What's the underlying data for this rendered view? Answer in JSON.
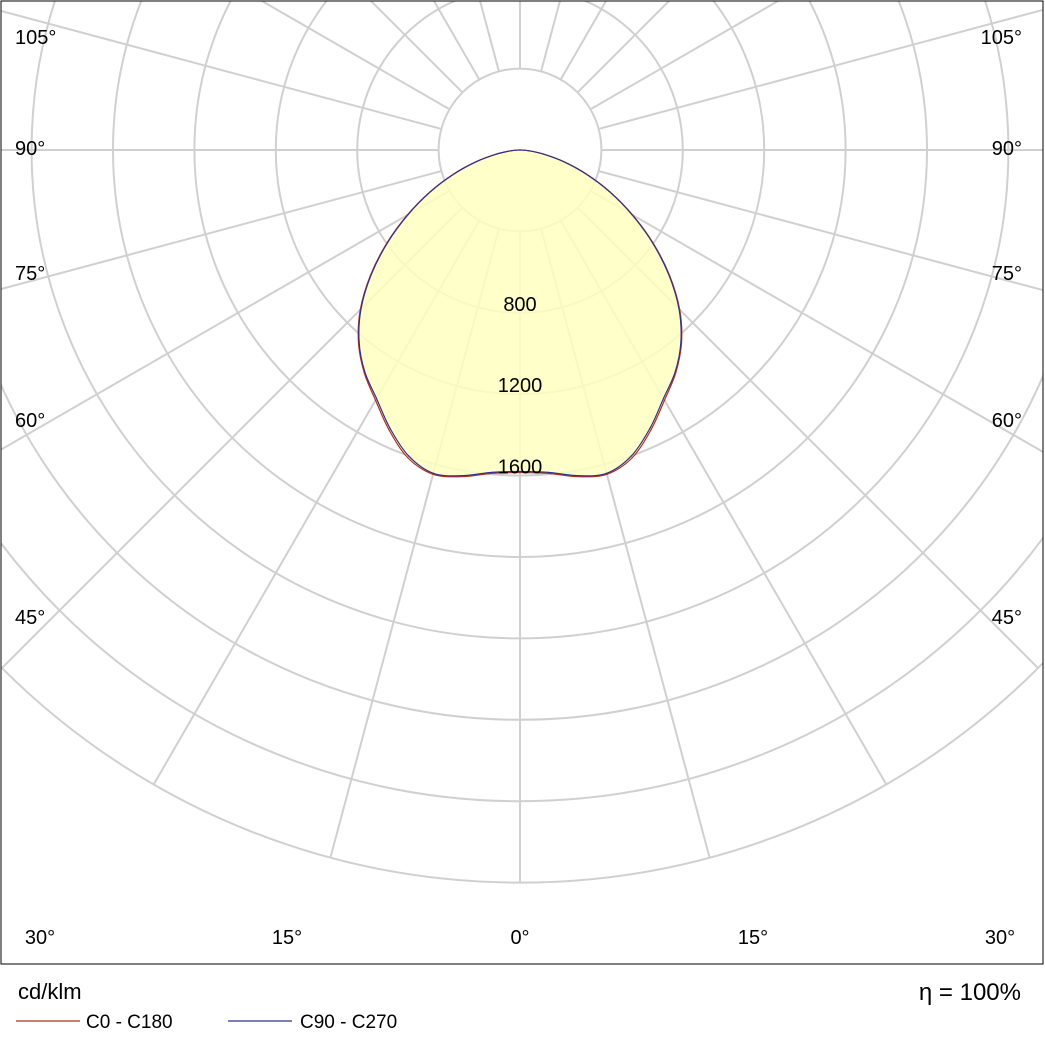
{
  "chart_data": {
    "type": "polar",
    "unit": "cd/klm",
    "efficiency_label": "η = 100%",
    "angle_unit": "degrees",
    "radial_ticks": [
      {
        "value": 800,
        "label": "800"
      },
      {
        "value": 1200,
        "label": "1200"
      },
      {
        "value": 1600,
        "label": "1600"
      }
    ],
    "angle_ticks": [
      {
        "side": "left",
        "angle": 105,
        "label": "105°"
      },
      {
        "side": "left",
        "angle": 90,
        "label": "90°"
      },
      {
        "side": "left",
        "angle": 75,
        "label": "75°"
      },
      {
        "side": "left",
        "angle": 60,
        "label": "60°"
      },
      {
        "side": "left",
        "angle": 45,
        "label": "45°"
      },
      {
        "side": "right",
        "angle": 105,
        "label": "105°"
      },
      {
        "side": "right",
        "angle": 90,
        "label": "90°"
      },
      {
        "side": "right",
        "angle": 75,
        "label": "75°"
      },
      {
        "side": "right",
        "angle": 60,
        "label": "60°"
      },
      {
        "side": "right",
        "angle": 45,
        "label": "45°"
      },
      {
        "side": "bottom",
        "angle": -30,
        "label": "30°"
      },
      {
        "side": "bottom",
        "angle": -15,
        "label": "15°"
      },
      {
        "side": "bottom",
        "angle": 0,
        "label": "0°"
      },
      {
        "side": "bottom",
        "angle": 15,
        "label": "15°"
      },
      {
        "side": "bottom",
        "angle": 30,
        "label": "30°"
      }
    ],
    "series": [
      {
        "name": "C0 - C180",
        "color": "#b03020",
        "points": [
          {
            "angle": 0,
            "value": 1585
          },
          {
            "angle": 5,
            "value": 1595
          },
          {
            "angle": 10,
            "value": 1630
          },
          {
            "angle": 15,
            "value": 1650
          },
          {
            "angle": 20,
            "value": 1610
          },
          {
            "angle": 25,
            "value": 1520
          },
          {
            "angle": 30,
            "value": 1420
          },
          {
            "angle": 35,
            "value": 1335
          },
          {
            "angle": 40,
            "value": 1235
          },
          {
            "angle": 45,
            "value": 1110
          },
          {
            "angle": 50,
            "value": 960
          },
          {
            "angle": 55,
            "value": 800
          },
          {
            "angle": 60,
            "value": 640
          },
          {
            "angle": 65,
            "value": 490
          },
          {
            "angle": 70,
            "value": 350
          },
          {
            "angle": 75,
            "value": 225
          },
          {
            "angle": 80,
            "value": 120
          },
          {
            "angle": 85,
            "value": 45
          },
          {
            "angle": 90,
            "value": 0
          }
        ]
      },
      {
        "name": "C90 - C270",
        "color": "#30308a",
        "points": [
          {
            "angle": 0,
            "value": 1580
          },
          {
            "angle": 5,
            "value": 1590
          },
          {
            "angle": 10,
            "value": 1625
          },
          {
            "angle": 15,
            "value": 1645
          },
          {
            "angle": 20,
            "value": 1600
          },
          {
            "angle": 25,
            "value": 1510
          },
          {
            "angle": 30,
            "value": 1410
          },
          {
            "angle": 35,
            "value": 1330
          },
          {
            "angle": 40,
            "value": 1230
          },
          {
            "angle": 45,
            "value": 1105
          },
          {
            "angle": 50,
            "value": 955
          },
          {
            "angle": 55,
            "value": 795
          },
          {
            "angle": 60,
            "value": 635
          },
          {
            "angle": 65,
            "value": 485
          },
          {
            "angle": 70,
            "value": 345
          },
          {
            "angle": 75,
            "value": 222
          },
          {
            "angle": 80,
            "value": 118
          },
          {
            "angle": 85,
            "value": 44
          },
          {
            "angle": 90,
            "value": 0
          }
        ]
      }
    ],
    "fill_color": "#ffffc0",
    "grid": true,
    "legend_position": "bottom-left"
  }
}
